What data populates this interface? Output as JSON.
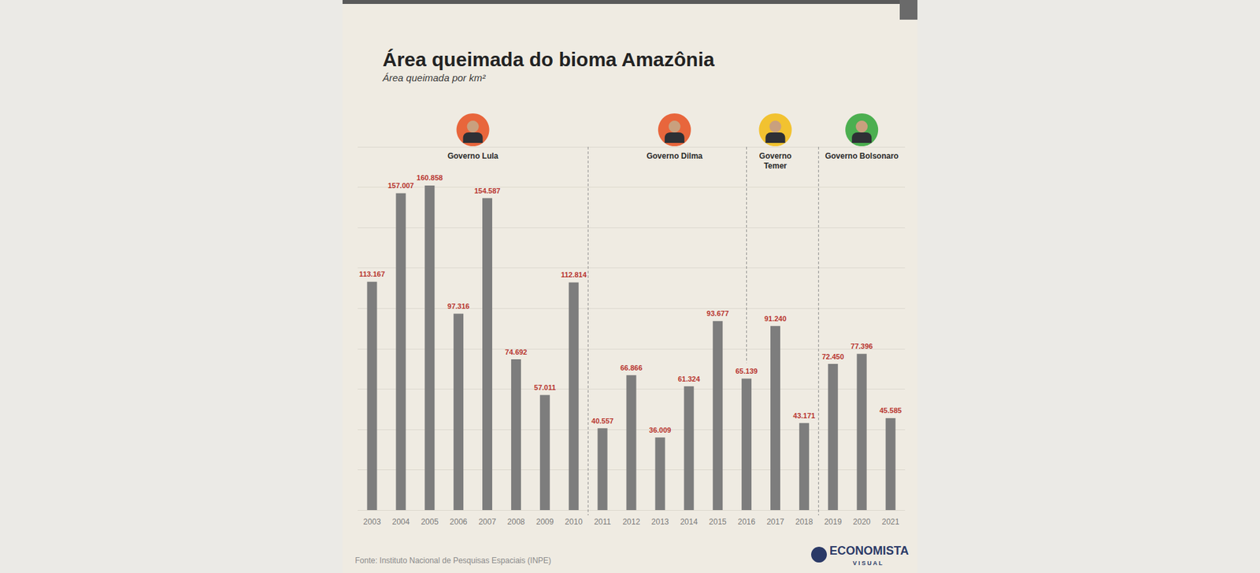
{
  "chart_data": {
    "type": "bar",
    "title": "Área queimada do bioma Amazônia",
    "subtitle": "Área queimada por km²",
    "source": "Fonte: Instituto Nacional de Pesquisas Espaciais (INPE)",
    "logo": "ECONOMISTA VISUAL",
    "categories": [
      "2003",
      "2004",
      "2005",
      "2006",
      "2007",
      "2008",
      "2009",
      "2010",
      "2011",
      "2012",
      "2013",
      "2014",
      "2015",
      "2016",
      "2017",
      "2018",
      "2019",
      "2020",
      "2021"
    ],
    "values": [
      113167,
      157007,
      160858,
      97316,
      154587,
      74692,
      57011,
      112814,
      40557,
      66866,
      36009,
      61324,
      93677,
      65139,
      91240,
      43171,
      72450,
      77396,
      45585
    ],
    "value_labels": [
      "113.167",
      "157.007",
      "160.858",
      "97.316",
      "154.587",
      "74.692",
      "57.011",
      "112.814",
      "40.557",
      "66.866",
      "36.009",
      "61.324",
      "93.677",
      "65.139",
      "91.240",
      "43.171",
      "72.450",
      "77.396",
      "45.585"
    ],
    "color": "#7d7d7d",
    "ylim": [
      0,
      180000
    ],
    "yticks": [
      0,
      20000,
      40000,
      60000,
      80000,
      100000,
      120000,
      140000,
      160000,
      180000
    ],
    "grid": true,
    "data_labels": true,
    "tick_labels": "x",
    "annotations": [
      {
        "text": "Governo Lula",
        "from": "2003",
        "to": "2010",
        "color": "#e8663c"
      },
      {
        "text": "Governo Dilma",
        "from": "2011",
        "to": "2016",
        "color": "#e8663c"
      },
      {
        "text": "Governo Temer",
        "from": "2016",
        "to": "2018",
        "color": "#f2c230"
      },
      {
        "text": "Governo Bolsonaro",
        "from": "2019",
        "to": "2021",
        "color": "#4caf50"
      }
    ]
  }
}
